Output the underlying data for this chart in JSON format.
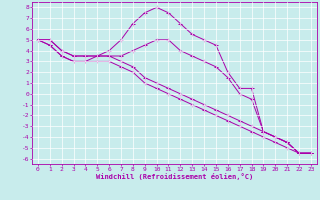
{
  "xlabel": "Windchill (Refroidissement éolien,°C)",
  "xlim": [
    -0.5,
    23.5
  ],
  "ylim": [
    -6.5,
    8.5
  ],
  "xticks": [
    0,
    1,
    2,
    3,
    4,
    5,
    6,
    7,
    8,
    9,
    10,
    11,
    12,
    13,
    14,
    15,
    16,
    17,
    18,
    19,
    20,
    21,
    22,
    23
  ],
  "yticks": [
    8,
    7,
    6,
    5,
    4,
    3,
    2,
    1,
    0,
    -1,
    -2,
    -3,
    -4,
    -5,
    -6
  ],
  "background_color": "#c8ecec",
  "line_color": "#aa00aa",
  "grid_color": "#ffffff",
  "series": [
    [
      5.0,
      5.0,
      4.0,
      3.5,
      3.5,
      3.5,
      4.0,
      5.0,
      6.5,
      7.5,
      8.0,
      7.5,
      6.5,
      5.5,
      5.0,
      4.5,
      2.0,
      0.5,
      0.5,
      -3.5,
      -4.0,
      -4.5,
      -5.5,
      -5.5
    ],
    [
      5.0,
      5.0,
      4.0,
      3.5,
      3.5,
      3.5,
      3.5,
      3.5,
      4.0,
      4.5,
      5.0,
      5.0,
      4.0,
      3.5,
      3.0,
      2.5,
      1.5,
      0.0,
      -0.5,
      -3.5,
      -4.0,
      -4.5,
      -5.5,
      -5.5
    ],
    [
      5.0,
      4.5,
      3.5,
      3.0,
      3.0,
      3.5,
      3.5,
      3.0,
      2.5,
      1.5,
      1.0,
      0.5,
      0.0,
      -0.5,
      -1.0,
      -1.5,
      -2.0,
      -2.5,
      -3.0,
      -3.5,
      -4.0,
      -4.5,
      -5.5,
      -5.5
    ],
    [
      5.0,
      4.5,
      3.5,
      3.0,
      3.0,
      3.0,
      3.0,
      2.5,
      2.0,
      1.0,
      0.5,
      0.0,
      -0.5,
      -1.0,
      -1.5,
      -2.0,
      -2.5,
      -3.0,
      -3.5,
      -4.0,
      -4.5,
      -5.0,
      -5.5,
      -5.5
    ]
  ]
}
